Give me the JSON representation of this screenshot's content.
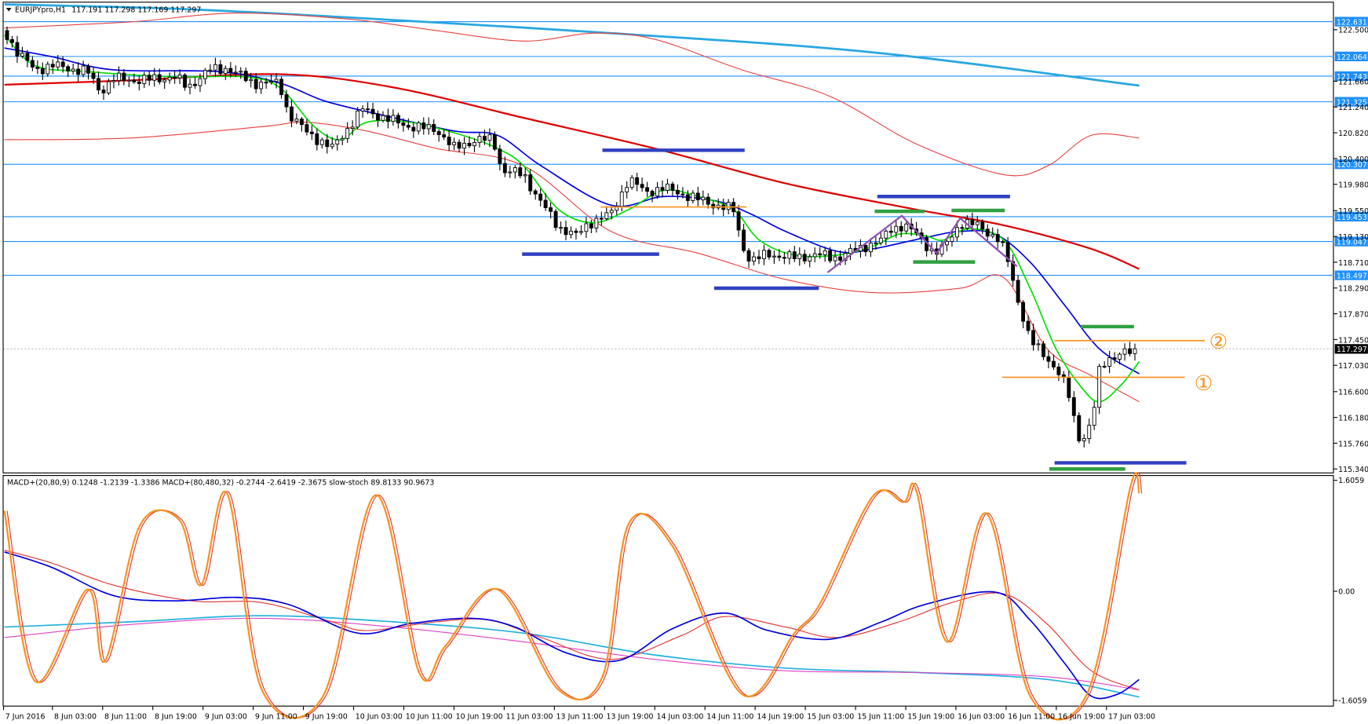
{
  "header": {
    "symbol": "EURJPYpro,H1",
    "ohlc": "117.191 117.298 117.169 117.297"
  },
  "price_axis": {
    "labels": [
      "122.500",
      "121.660",
      "121.240",
      "120.820",
      "120.400",
      "119.980",
      "119.550",
      "119.130",
      "118.710",
      "118.290",
      "117.870",
      "117.450",
      "117.030",
      "116.600",
      "116.180",
      "115.760",
      "115.340"
    ],
    "levels": [
      "122.631",
      "122.064",
      "121.743",
      "121.325",
      "120.307",
      "119.453",
      "119.047",
      "118.497"
    ],
    "current": "117.297"
  },
  "indicator": {
    "legend": "MACD+(20,80,9) 0.1248 -1.2139 -1.3386  MACD+(80,480,32) -0.2744 -2.6419 -2.3675  slow-stoch 89.8133 90.9673",
    "axis_labels": [
      "1.6059",
      "0.00",
      "-1.6059"
    ]
  },
  "time_axis": [
    "7 Jun 2016",
    "8 Jun 03:00",
    "8 Jun 11:00",
    "8 Jun 19:00",
    "9 Jun 03:00",
    "9 Jun 11:00",
    "9 Jun 19:00",
    "10 Jun 03:00",
    "10 Jun 11:00",
    "10 Jun 19:00",
    "11 Jun 03:00",
    "13 Jun 11:00",
    "13 Jun 19:00",
    "14 Jun 03:00",
    "14 Jun 11:00",
    "14 Jun 19:00",
    "15 Jun 03:00",
    "15 Jun 11:00",
    "15 Jun 19:00",
    "16 Jun 03:00",
    "16 Jun 11:00",
    "16 Jun 19:00",
    "17 Jun 03:00"
  ],
  "annotations": [
    "②",
    "①"
  ]
}
